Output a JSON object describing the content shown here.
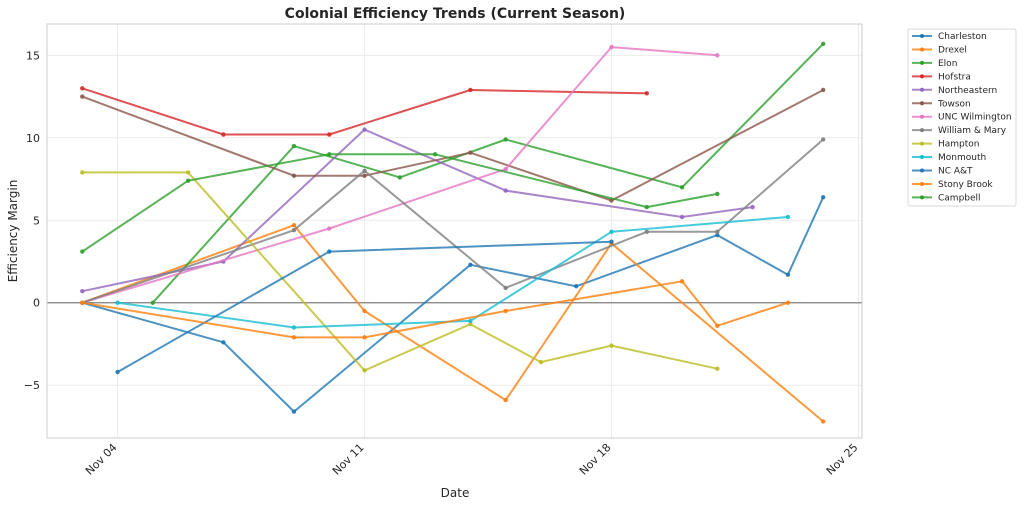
{
  "chart_data": {
    "type": "line",
    "title": "Colonial Efficiency Trends (Current Season)",
    "xlabel": "Date",
    "ylabel": "Efficiency Margin",
    "x_tick_labels": [
      "Nov 04",
      "Nov 11",
      "Nov 18",
      "Nov 25"
    ],
    "x_tick_days": [
      4,
      11,
      18,
      25
    ],
    "xlim_days": [
      2,
      25.1
    ],
    "y_ticks": [
      -5,
      0,
      5,
      10,
      15
    ],
    "y_tick_labels": [
      "−5",
      "0",
      "5",
      "10",
      "15"
    ],
    "ylim": [
      -8.2,
      16.9
    ],
    "grid": true,
    "zero_line": true,
    "legend_position": "outside-top-right",
    "series": [
      {
        "name": "Charleston",
        "color": "#1f77b4",
        "days": [
          3,
          7,
          9,
          14,
          17,
          21,
          23,
          24
        ],
        "values": [
          0,
          -2.4,
          -6.6,
          2.3,
          1.0,
          4.1,
          1.7,
          6.4
        ]
      },
      {
        "name": "Drexel",
        "color": "#ff7f0e",
        "days": [
          3,
          9,
          11,
          15,
          18,
          24
        ],
        "values": [
          0,
          4.7,
          -0.5,
          -5.9,
          3.6,
          -7.2
        ]
      },
      {
        "name": "Elon",
        "color": "#2ca02c",
        "days": [
          5,
          9,
          12,
          15,
          20,
          24
        ],
        "values": [
          0,
          9.5,
          7.6,
          9.9,
          7.0,
          15.7
        ]
      },
      {
        "name": "Hofstra",
        "color": "#d62728",
        "days": [
          3,
          7,
          10,
          14,
          19
        ],
        "values": [
          13.0,
          10.2,
          10.2,
          12.9,
          12.7
        ]
      },
      {
        "name": "Northeastern",
        "color": "#9467bd",
        "days": [
          3,
          7,
          11,
          15,
          20,
          22
        ],
        "values": [
          0.7,
          2.5,
          10.5,
          6.8,
          5.2,
          5.8
        ]
      },
      {
        "name": "Towson",
        "color": "#8c564b",
        "days": [
          3,
          9,
          11,
          14,
          18,
          24
        ],
        "values": [
          12.5,
          7.7,
          7.7,
          9.1,
          6.2,
          12.9
        ]
      },
      {
        "name": "UNC Wilmington",
        "color": "#e377c2",
        "days": [
          3,
          10,
          15,
          18,
          21
        ],
        "values": [
          0,
          4.5,
          8.1,
          15.5,
          15.0
        ]
      },
      {
        "name": "William & Mary",
        "color": "#7f7f7f",
        "days": [
          3,
          9,
          11,
          15,
          19,
          21,
          24
        ],
        "values": [
          0,
          4.4,
          8.0,
          0.9,
          4.3,
          4.3,
          9.9
        ]
      },
      {
        "name": "Hampton",
        "color": "#bcbd22",
        "days": [
          3,
          6,
          11,
          14,
          16,
          18,
          21
        ],
        "values": [
          7.9,
          7.9,
          -4.1,
          -1.3,
          -3.6,
          -2.6,
          -4.0
        ]
      },
      {
        "name": "Monmouth",
        "color": "#17becf",
        "days": [
          4,
          9,
          14,
          18,
          23
        ],
        "values": [
          0,
          -1.5,
          -1.1,
          4.3,
          5.2
        ]
      },
      {
        "name": "NC A&T",
        "color": "#1f77b4",
        "days": [
          4,
          10,
          18
        ],
        "values": [
          -4.2,
          3.1,
          3.7
        ]
      },
      {
        "name": "Stony Brook",
        "color": "#ff7f0e",
        "days": [
          3,
          9,
          11,
          15,
          20,
          21,
          23
        ],
        "values": [
          0,
          -2.1,
          -2.1,
          -0.5,
          1.3,
          -1.4,
          0
        ]
      },
      {
        "name": "Campbell",
        "color": "#2ca02c",
        "days": [
          3,
          6,
          10,
          13,
          19,
          21
        ],
        "values": [
          3.1,
          7.4,
          9.0,
          9.0,
          5.8,
          6.6
        ]
      }
    ]
  }
}
